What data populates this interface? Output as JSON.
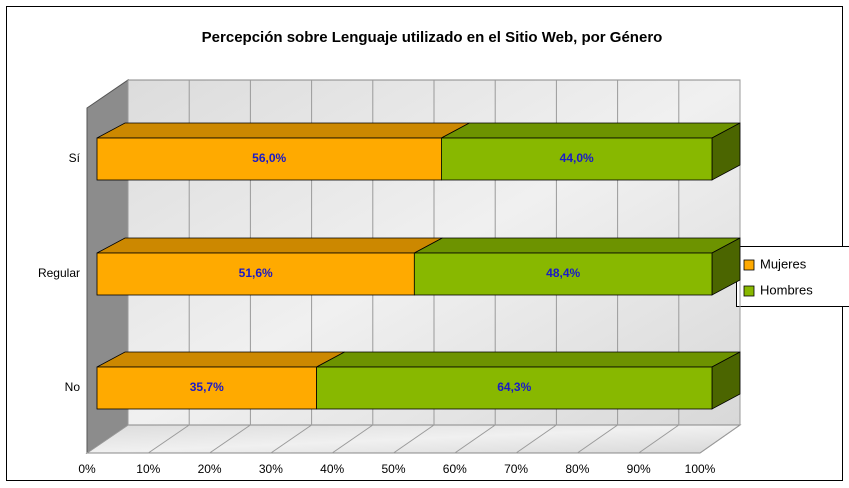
{
  "chart_data": {
    "type": "stacked-bar-3d",
    "orientation": "horizontal",
    "title": "Percepción sobre Lenguaje utilizado en el Sitio Web, por Género",
    "categories": [
      "Sí",
      "Regular",
      "No"
    ],
    "series": [
      {
        "name": "Mujeres",
        "color": "#FFAA00",
        "values": [
          56.0,
          51.6,
          35.7
        ],
        "value_labels": [
          "56,0%",
          "51,6%",
          "35,7%"
        ]
      },
      {
        "name": "Hombres",
        "color": "#88B800",
        "values": [
          44.0,
          48.4,
          64.3
        ],
        "value_labels": [
          "44,0%",
          "48,4%",
          "64,3%"
        ]
      }
    ],
    "xlim": [
      0,
      100
    ],
    "xticks": [
      {
        "value": 0,
        "label": "0%"
      },
      {
        "value": 10,
        "label": "10%"
      },
      {
        "value": 20,
        "label": "20%"
      },
      {
        "value": 30,
        "label": "30%"
      },
      {
        "value": 40,
        "label": "40%"
      },
      {
        "value": 50,
        "label": "50%"
      },
      {
        "value": 60,
        "label": "60%"
      },
      {
        "value": 70,
        "label": "70%"
      },
      {
        "value": 80,
        "label": "80%"
      },
      {
        "value": 90,
        "label": "90%"
      },
      {
        "value": 100,
        "label": "100%"
      }
    ],
    "grid": true,
    "legend": "right"
  }
}
